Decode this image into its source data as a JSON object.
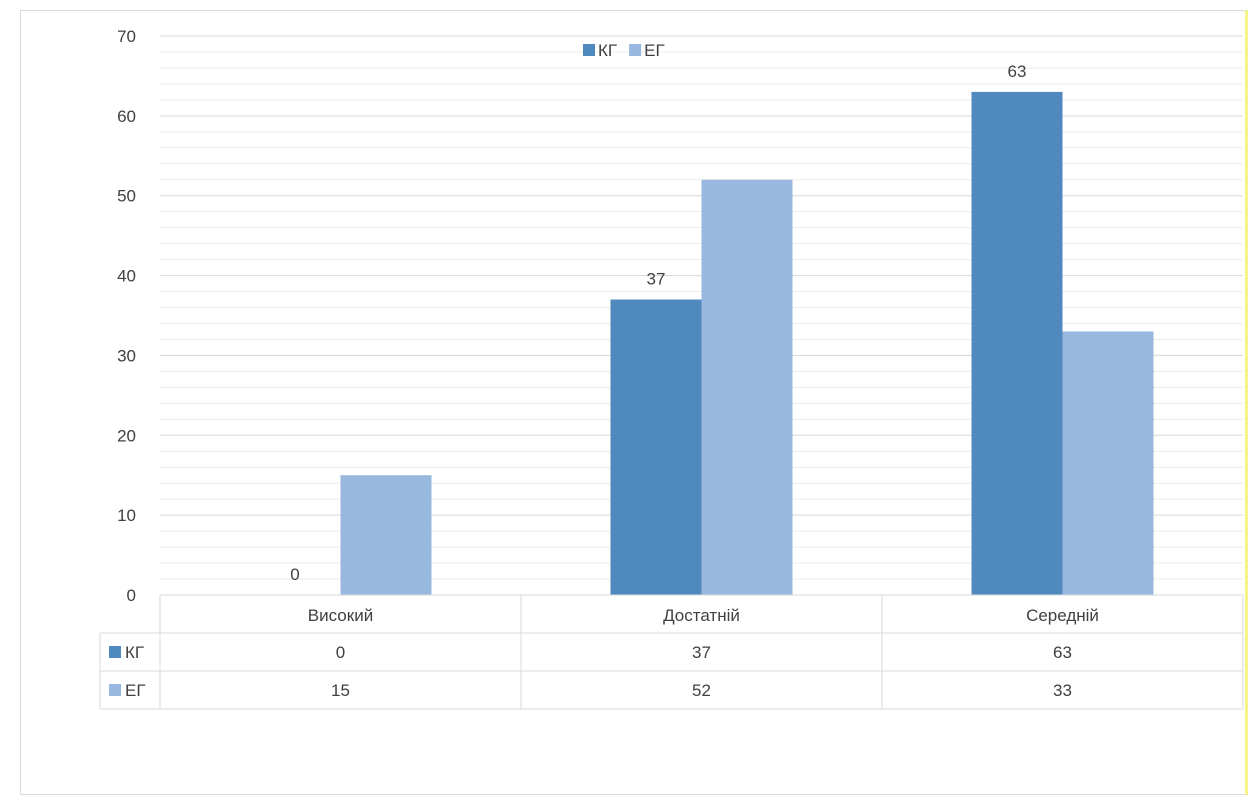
{
  "chart_data": {
    "type": "bar",
    "categories": [
      "Високий",
      "Достатній",
      "Середній"
    ],
    "series": [
      {
        "name": "КГ",
        "values": [
          0,
          37,
          63
        ],
        "color": "#4f89bd",
        "data_labels": true
      },
      {
        "name": "ЕГ",
        "values": [
          15,
          52,
          33
        ],
        "color": "#98b8df",
        "data_labels": false
      }
    ],
    "ylim": [
      0,
      70
    ],
    "yticks": [
      0,
      10,
      20,
      30,
      40,
      50,
      60,
      70
    ],
    "title": "",
    "xlabel": "",
    "ylabel": "",
    "grid": true,
    "legend": "top-center",
    "data_table": true
  }
}
